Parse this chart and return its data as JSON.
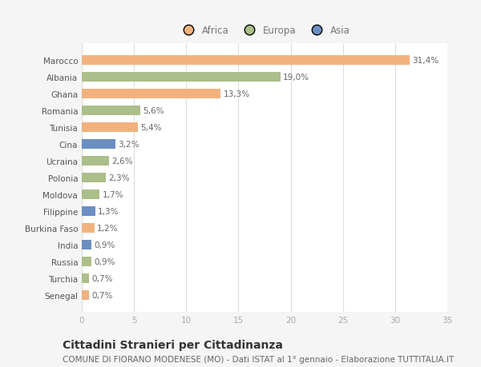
{
  "countries": [
    "Marocco",
    "Albania",
    "Ghana",
    "Romania",
    "Tunisia",
    "Cina",
    "Ucraina",
    "Polonia",
    "Moldova",
    "Filippine",
    "Burkina Faso",
    "India",
    "Russia",
    "Turchia",
    "Senegal"
  ],
  "values": [
    31.4,
    19.0,
    13.3,
    5.6,
    5.4,
    3.2,
    2.6,
    2.3,
    1.7,
    1.3,
    1.2,
    0.9,
    0.9,
    0.7,
    0.7
  ],
  "labels": [
    "31,4%",
    "19,0%",
    "13,3%",
    "5,6%",
    "5,4%",
    "3,2%",
    "2,6%",
    "2,3%",
    "1,7%",
    "1,3%",
    "1,2%",
    "0,9%",
    "0,9%",
    "0,7%",
    "0,7%"
  ],
  "colors": [
    "#F2B27E",
    "#ABBF8A",
    "#F2B27E",
    "#ABBF8A",
    "#F2B27E",
    "#6B8FC2",
    "#ABBF8A",
    "#ABBF8A",
    "#ABBF8A",
    "#6B8FC2",
    "#F2B27E",
    "#6B8FC2",
    "#ABBF8A",
    "#ABBF8A",
    "#F2B27E"
  ],
  "continent": [
    "Africa",
    "Europa",
    "Africa",
    "Europa",
    "Africa",
    "Asia",
    "Europa",
    "Europa",
    "Europa",
    "Asia",
    "Africa",
    "Asia",
    "Europa",
    "Europa",
    "Africa"
  ],
  "legend_labels": [
    "Africa",
    "Europa",
    "Asia"
  ],
  "legend_colors": [
    "#F2B27E",
    "#ABBF8A",
    "#6B8FC2"
  ],
  "title": "Cittadini Stranieri per Cittadinanza",
  "subtitle": "COMUNE DI FIORANO MODENESE (MO) - Dati ISTAT al 1° gennaio - Elaborazione TUTTITALIA.IT",
  "xlim": [
    0,
    35
  ],
  "xticks": [
    0,
    5,
    10,
    15,
    20,
    25,
    30,
    35
  ],
  "bg_color": "#f5f5f5",
  "plot_bg_color": "#ffffff",
  "title_fontsize": 10,
  "subtitle_fontsize": 7.5,
  "label_fontsize": 7.5,
  "tick_fontsize": 7.5,
  "legend_fontsize": 8.5
}
